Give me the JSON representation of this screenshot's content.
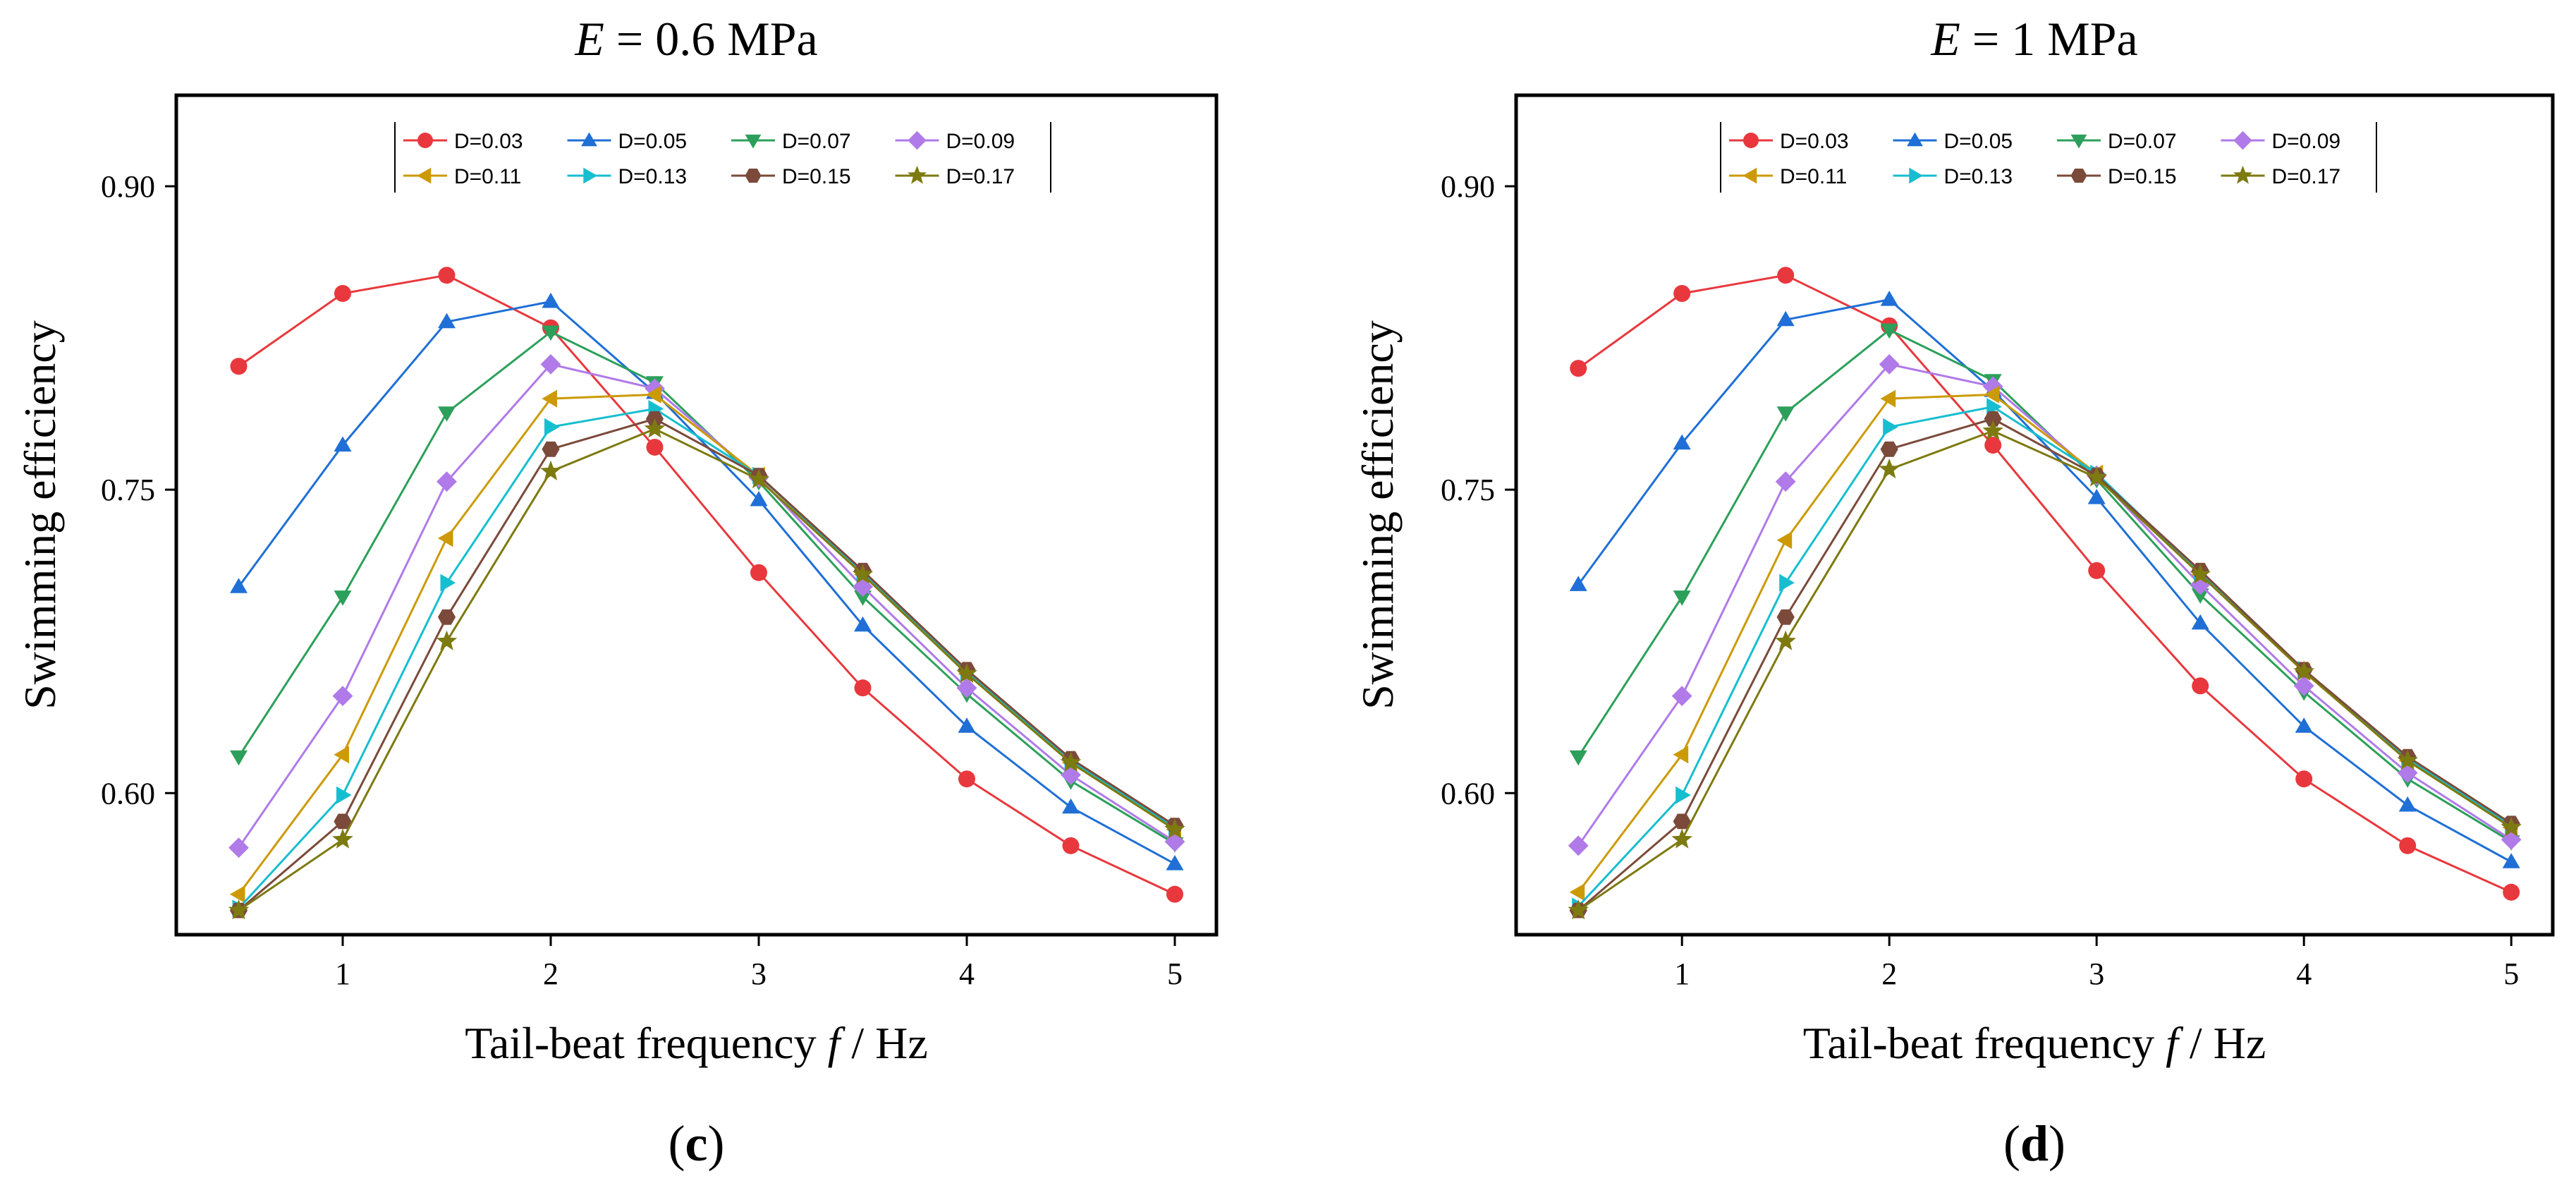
{
  "chart_data": [
    {
      "type": "line",
      "panel": "c",
      "title": "E = 0.6 MPa",
      "title_var": "E",
      "title_rest": " = 0.6 MPa",
      "caption": "(c)",
      "xlabel": "Tail-beat frequency f / Hz",
      "xlabel_pre": "Tail-beat frequency ",
      "xlabel_var": "f",
      "xlabel_post": " / Hz",
      "ylabel": "Swimming efficiency",
      "xlim": [
        0.2,
        5.2
      ],
      "ylim": [
        0.53,
        0.945
      ],
      "xticks": [
        1,
        2,
        3,
        4,
        5
      ],
      "xtick_labels": [
        "1",
        "2",
        "3",
        "4",
        "5"
      ],
      "yticks": [
        0.6,
        0.75,
        0.9
      ],
      "ytick_labels": [
        "0.60",
        "0.75",
        "0.90"
      ],
      "legend_position": "top-center",
      "x": [
        0.5,
        1,
        1.5,
        2,
        2.5,
        3,
        3.5,
        4,
        4.5,
        5
      ],
      "series": [
        {
          "name": "D=0.03",
          "color": "#e8383d",
          "marker": "circle",
          "values": [
            0.811,
            0.847,
            0.856,
            0.83,
            0.771,
            0.709,
            0.652,
            0.607,
            0.574,
            0.55
          ]
        },
        {
          "name": "D=0.05",
          "color": "#1f6fd6",
          "marker": "triangle-up",
          "values": [
            0.702,
            0.772,
            0.833,
            0.843,
            0.798,
            0.745,
            0.683,
            0.633,
            0.593,
            0.565
          ]
        },
        {
          "name": "D=0.07",
          "color": "#2ca05a",
          "marker": "triangle-down",
          "values": [
            0.618,
            0.697,
            0.788,
            0.828,
            0.803,
            0.754,
            0.697,
            0.649,
            0.606,
            0.575
          ]
        },
        {
          "name": "D=0.09",
          "color": "#b07ae8",
          "marker": "diamond",
          "values": [
            0.573,
            0.648,
            0.754,
            0.812,
            0.8,
            0.756,
            0.702,
            0.652,
            0.609,
            0.576
          ]
        },
        {
          "name": "D=0.11",
          "color": "#cc9a06",
          "marker": "triangle-left",
          "values": [
            0.55,
            0.619,
            0.726,
            0.795,
            0.797,
            0.757,
            0.708,
            0.659,
            0.615,
            0.582
          ]
        },
        {
          "name": "D=0.13",
          "color": "#17becf",
          "marker": "triangle-right",
          "values": [
            0.543,
            0.599,
            0.704,
            0.781,
            0.79,
            0.757,
            0.709,
            0.66,
            0.616,
            0.583
          ]
        },
        {
          "name": "D=0.15",
          "color": "#7b4a3a",
          "marker": "hexagon",
          "values": [
            0.542,
            0.586,
            0.687,
            0.77,
            0.785,
            0.757,
            0.71,
            0.661,
            0.617,
            0.584
          ]
        },
        {
          "name": "D=0.17",
          "color": "#7d7a10",
          "marker": "star",
          "values": [
            0.542,
            0.577,
            0.675,
            0.759,
            0.78,
            0.755,
            0.708,
            0.659,
            0.615,
            0.582
          ]
        }
      ]
    },
    {
      "type": "line",
      "panel": "d",
      "title": "E = 1 MPa",
      "title_var": "E",
      "title_rest": " = 1 MPa",
      "caption": "(d)",
      "xlabel": "Tail-beat frequency f / Hz",
      "xlabel_pre": "Tail-beat frequency ",
      "xlabel_var": "f",
      "xlabel_post": " / Hz",
      "ylabel": "Swimming efficiency",
      "xlim": [
        0.2,
        5.2
      ],
      "ylim": [
        0.53,
        0.945
      ],
      "xticks": [
        1,
        2,
        3,
        4,
        5
      ],
      "xtick_labels": [
        "1",
        "2",
        "3",
        "4",
        "5"
      ],
      "yticks": [
        0.6,
        0.75,
        0.9
      ],
      "ytick_labels": [
        "0.60",
        "0.75",
        "0.90"
      ],
      "legend_position": "top-center",
      "x": [
        0.5,
        1,
        1.5,
        2,
        2.5,
        3,
        3.5,
        4,
        4.5,
        5
      ],
      "series": [
        {
          "name": "D=0.03",
          "color": "#e8383d",
          "marker": "circle",
          "values": [
            0.81,
            0.847,
            0.856,
            0.831,
            0.772,
            0.71,
            0.653,
            0.607,
            0.574,
            0.551
          ]
        },
        {
          "name": "D=0.05",
          "color": "#1f6fd6",
          "marker": "triangle-up",
          "values": [
            0.703,
            0.773,
            0.834,
            0.844,
            0.799,
            0.746,
            0.684,
            0.633,
            0.594,
            0.566
          ]
        },
        {
          "name": "D=0.07",
          "color": "#2ca05a",
          "marker": "triangle-down",
          "values": [
            0.618,
            0.697,
            0.788,
            0.829,
            0.804,
            0.755,
            0.698,
            0.65,
            0.607,
            0.576
          ]
        },
        {
          "name": "D=0.09",
          "color": "#b07ae8",
          "marker": "diamond",
          "values": [
            0.574,
            0.648,
            0.754,
            0.812,
            0.801,
            0.757,
            0.703,
            0.653,
            0.61,
            0.577
          ]
        },
        {
          "name": "D=0.11",
          "color": "#cc9a06",
          "marker": "triangle-left",
          "values": [
            0.551,
            0.619,
            0.725,
            0.795,
            0.797,
            0.758,
            0.708,
            0.66,
            0.616,
            0.583
          ]
        },
        {
          "name": "D=0.13",
          "color": "#17becf",
          "marker": "triangle-right",
          "values": [
            0.544,
            0.599,
            0.704,
            0.781,
            0.791,
            0.758,
            0.709,
            0.661,
            0.617,
            0.584
          ]
        },
        {
          "name": "D=0.15",
          "color": "#7b4a3a",
          "marker": "hexagon",
          "values": [
            0.542,
            0.586,
            0.687,
            0.77,
            0.785,
            0.757,
            0.71,
            0.661,
            0.618,
            0.585
          ]
        },
        {
          "name": "D=0.17",
          "color": "#7d7a10",
          "marker": "star",
          "values": [
            0.542,
            0.577,
            0.675,
            0.76,
            0.779,
            0.756,
            0.708,
            0.66,
            0.616,
            0.583
          ]
        }
      ]
    }
  ]
}
